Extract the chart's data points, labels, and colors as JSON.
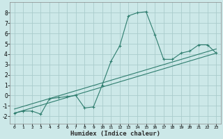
{
  "xlabel": "Humidex (Indice chaleur)",
  "ylabel": "",
  "bg_color": "#cce8e8",
  "grid_color": "#aacccc",
  "line_color": "#2e7d6e",
  "xlim": [
    -0.5,
    23.5
  ],
  "ylim": [
    -2.7,
    9.0
  ],
  "yticks": [
    -2,
    -1,
    0,
    1,
    2,
    3,
    4,
    5,
    6,
    7,
    8
  ],
  "xticks": [
    0,
    1,
    2,
    3,
    4,
    5,
    6,
    7,
    8,
    9,
    10,
    11,
    12,
    13,
    14,
    15,
    16,
    17,
    18,
    19,
    20,
    21,
    22,
    23
  ],
  "main_x": [
    0,
    1,
    2,
    3,
    4,
    5,
    6,
    7,
    8,
    9,
    10,
    11,
    12,
    13,
    14,
    15,
    16,
    17,
    18,
    19,
    20,
    21,
    22,
    23
  ],
  "main_y": [
    -1.7,
    -1.5,
    -1.5,
    -1.8,
    -0.3,
    -0.2,
    -0.1,
    0.0,
    -1.2,
    -1.1,
    1.0,
    3.3,
    4.8,
    7.7,
    8.0,
    8.1,
    5.9,
    3.5,
    3.5,
    4.1,
    4.3,
    4.9,
    4.9,
    4.1
  ],
  "line1_x": [
    0,
    23
  ],
  "line1_y": [
    -1.7,
    4.1
  ],
  "line2_x": [
    0,
    23
  ],
  "line2_y": [
    -1.3,
    4.5
  ],
  "figsize": [
    3.2,
    2.0
  ],
  "dpi": 100,
  "xlabel_fontsize": 6.5,
  "tick_fontsize_x": 4.5,
  "tick_fontsize_y": 5.5
}
